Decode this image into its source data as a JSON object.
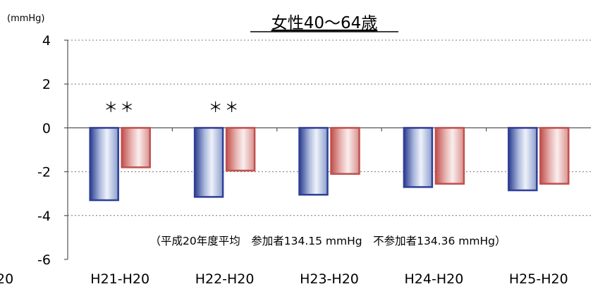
{
  "chart_data": {
    "type": "bar",
    "title": "女性40〜64歳",
    "unit_label": "(mmHg)",
    "ylim": [
      -6,
      4
    ],
    "yticks": [
      "4",
      "2",
      "0",
      "-2",
      "-4",
      "-6"
    ],
    "ytick_values": [
      4,
      2,
      0,
      -2,
      -4,
      -6
    ],
    "grid": "horizontal dotted",
    "categories": [
      "H21-H20",
      "H22-H20",
      "H23-H20",
      "H24-H20",
      "H25-H20"
    ],
    "clipped_left_label": "20",
    "series": [
      {
        "values": [
          -3.3,
          -3.15,
          -3.05,
          -2.7,
          -2.85
        ],
        "color": "#2f3f96"
      },
      {
        "values": [
          -1.8,
          -1.95,
          -2.1,
          -2.55,
          -2.55
        ],
        "color": "#c0504d"
      }
    ],
    "significance_labels": [
      "＊＊",
      "＊＊",
      "",
      "",
      ""
    ],
    "annotation": "（平成20年度平均　参加者134.15 mmHg　不参加者134.36 mmHg）"
  }
}
